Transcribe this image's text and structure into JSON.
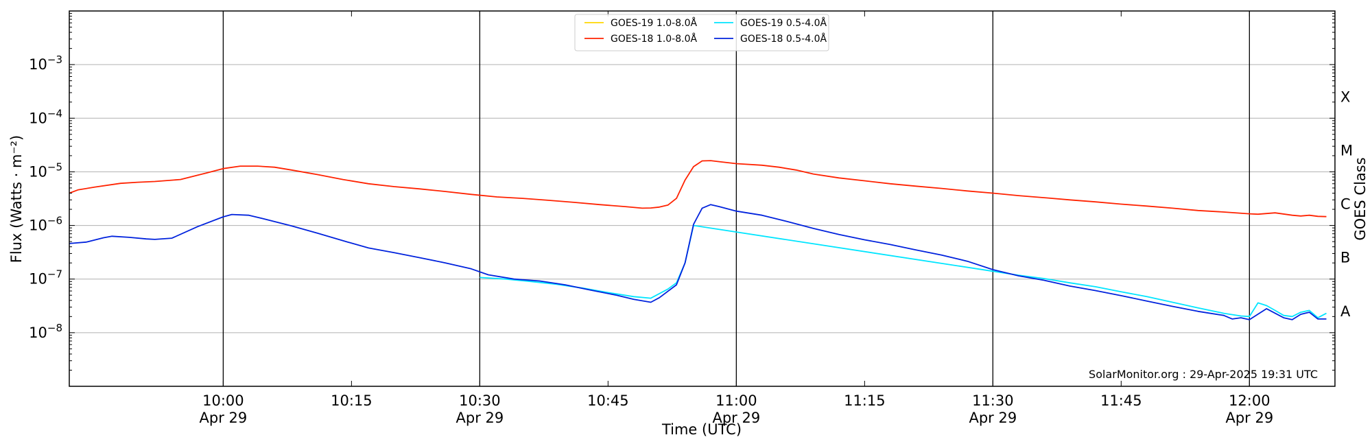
{
  "chart_data": {
    "type": "line",
    "title": "",
    "xlabel": "Time (UTC)",
    "ylabel": "Flux (Watts · m⁻²)",
    "ylabel_right": "GOES Class",
    "yscale": "log",
    "ylim": [
      1e-09,
      0.01
    ],
    "xlim": [
      "2025-04-29T09:42",
      "2025-04-29T12:10"
    ],
    "x_ticks": [
      {
        "time": "10:00",
        "date": "Apr 29"
      },
      {
        "time": "10:15",
        "date": ""
      },
      {
        "time": "10:30",
        "date": "Apr 29"
      },
      {
        "time": "10:45",
        "date": ""
      },
      {
        "time": "11:00",
        "date": "Apr 29"
      },
      {
        "time": "11:15",
        "date": ""
      },
      {
        "time": "11:30",
        "date": "Apr 29"
      },
      {
        "time": "11:45",
        "date": ""
      },
      {
        "time": "12:00",
        "date": "Apr 29"
      }
    ],
    "y_ticks": [
      "10^-3",
      "10^-4",
      "10^-5",
      "10^-6",
      "10^-7",
      "10^-8"
    ],
    "goes_classes": [
      {
        "label": "X",
        "flux": 0.0001
      },
      {
        "label": "M",
        "flux": 1e-05
      },
      {
        "label": "C",
        "flux": 1e-06
      },
      {
        "label": "B",
        "flux": 1e-07
      },
      {
        "label": "A",
        "flux": 1e-08
      }
    ],
    "grid": "horizontal",
    "legend_position": "top-center",
    "annotation": "SolarMonitor.org : 29-Apr-2025 19:31 UTC",
    "series": [
      {
        "name": "GOES-19 1.0-8.0Å",
        "color": "#ffd700",
        "points": []
      },
      {
        "name": "GOES-18 1.0-8.0Å",
        "color": "#ff2200",
        "points": [
          [
            "09:42",
            4e-06
          ],
          [
            "09:43",
            4.6e-06
          ],
          [
            "09:45",
            5.2e-06
          ],
          [
            "09:48",
            6.1e-06
          ],
          [
            "09:50",
            6.4e-06
          ],
          [
            "09:52",
            6.6e-06
          ],
          [
            "09:55",
            7.2e-06
          ],
          [
            "09:58",
            9.5e-06
          ],
          [
            "10:00",
            1.15e-05
          ],
          [
            "10:02",
            1.28e-05
          ],
          [
            "10:04",
            1.28e-05
          ],
          [
            "10:06",
            1.22e-05
          ],
          [
            "10:08",
            1.08e-05
          ],
          [
            "10:11",
            8.9e-06
          ],
          [
            "10:14",
            7.2e-06
          ],
          [
            "10:17",
            6e-06
          ],
          [
            "10:20",
            5.3e-06
          ],
          [
            "10:23",
            4.8e-06
          ],
          [
            "10:26",
            4.3e-06
          ],
          [
            "10:29",
            3.8e-06
          ],
          [
            "10:32",
            3.4e-06
          ],
          [
            "10:35",
            3.2e-06
          ],
          [
            "10:38",
            2.95e-06
          ],
          [
            "10:41",
            2.7e-06
          ],
          [
            "10:44",
            2.45e-06
          ],
          [
            "10:47",
            2.25e-06
          ],
          [
            "10:49",
            2.1e-06
          ],
          [
            "10:50",
            2.12e-06
          ],
          [
            "10:51",
            2.2e-06
          ],
          [
            "10:52",
            2.4e-06
          ],
          [
            "10:53",
            3.2e-06
          ],
          [
            "10:54",
            7e-06
          ],
          [
            "10:55",
            1.25e-05
          ],
          [
            "10:56",
            1.6e-05
          ],
          [
            "10:57",
            1.62e-05
          ],
          [
            "10:58",
            1.55e-05
          ],
          [
            "11:00",
            1.42e-05
          ],
          [
            "11:03",
            1.33e-05
          ],
          [
            "11:05",
            1.22e-05
          ],
          [
            "11:07",
            1.08e-05
          ],
          [
            "11:09",
            9.1e-06
          ],
          [
            "11:12",
            7.7e-06
          ],
          [
            "11:15",
            6.8e-06
          ],
          [
            "11:18",
            6e-06
          ],
          [
            "11:21",
            5.4e-06
          ],
          [
            "11:24",
            4.9e-06
          ],
          [
            "11:27",
            4.4e-06
          ],
          [
            "11:30",
            4e-06
          ],
          [
            "11:33",
            3.6e-06
          ],
          [
            "11:36",
            3.3e-06
          ],
          [
            "11:39",
            3e-06
          ],
          [
            "11:42",
            2.75e-06
          ],
          [
            "11:45",
            2.5e-06
          ],
          [
            "11:48",
            2.3e-06
          ],
          [
            "11:51",
            2.1e-06
          ],
          [
            "11:54",
            1.9e-06
          ],
          [
            "11:57",
            1.78e-06
          ],
          [
            "12:00",
            1.65e-06
          ],
          [
            "12:01",
            1.62e-06
          ],
          [
            "12:03",
            1.72e-06
          ],
          [
            "12:05",
            1.55e-06
          ],
          [
            "12:06",
            1.5e-06
          ],
          [
            "12:07",
            1.55e-06
          ],
          [
            "12:08",
            1.48e-06
          ],
          [
            "12:09",
            1.46e-06
          ]
        ]
      },
      {
        "name": "GOES-19 0.5-4.0Å",
        "color": "#00e5ff",
        "points": [
          [
            "10:30",
            1.07e-07
          ],
          [
            "10:33",
            1e-07
          ],
          [
            "10:36",
            9e-08
          ],
          [
            "10:39",
            8e-08
          ],
          [
            "10:42",
            6.8e-08
          ],
          [
            "10:45",
            5.6e-08
          ],
          [
            "10:48",
            4.7e-08
          ],
          [
            "10:50",
            4.4e-08
          ],
          [
            "10:52",
            6.5e-08
          ],
          [
            "10:53",
            8.5e-08
          ],
          [
            "10:54",
            2e-07
          ],
          [
            "10:55",
            1e-06
          ],
          [
            "11:30",
            1.4e-07
          ],
          [
            "11:33",
            1.18e-07
          ],
          [
            "11:36",
            1.02e-07
          ],
          [
            "11:39",
            8.5e-08
          ],
          [
            "11:42",
            7.2e-08
          ],
          [
            "11:45",
            5.8e-08
          ],
          [
            "11:48",
            4.7e-08
          ],
          [
            "11:51",
            3.7e-08
          ],
          [
            "11:54",
            2.9e-08
          ],
          [
            "11:57",
            2.3e-08
          ],
          [
            "11:59",
            2.05e-08
          ],
          [
            "12:00",
            2e-08
          ],
          [
            "12:01",
            3.6e-08
          ],
          [
            "12:02",
            3.2e-08
          ],
          [
            "12:03",
            2.6e-08
          ],
          [
            "12:04",
            2.1e-08
          ],
          [
            "12:05",
            2e-08
          ],
          [
            "12:06",
            2.4e-08
          ],
          [
            "12:07",
            2.6e-08
          ],
          [
            "12:08",
            1.9e-08
          ],
          [
            "12:09",
            2.3e-08
          ]
        ]
      },
      {
        "name": "GOES-18 0.5-4.0Å",
        "color": "#0022dd",
        "points": [
          [
            "09:42",
            4.6e-07
          ],
          [
            "09:44",
            4.9e-07
          ],
          [
            "09:46",
            5.9e-07
          ],
          [
            "09:47",
            6.3e-07
          ],
          [
            "09:49",
            6e-07
          ],
          [
            "09:51",
            5.6e-07
          ],
          [
            "09:52",
            5.5e-07
          ],
          [
            "09:54",
            5.8e-07
          ],
          [
            "09:57",
            9.5e-07
          ],
          [
            "10:00",
            1.45e-06
          ],
          [
            "10:01",
            1.6e-06
          ],
          [
            "10:03",
            1.55e-06
          ],
          [
            "10:05",
            1.3e-06
          ],
          [
            "10:08",
            9.8e-07
          ],
          [
            "10:11",
            7.2e-07
          ],
          [
            "10:14",
            5.2e-07
          ],
          [
            "10:17",
            3.8e-07
          ],
          [
            "10:20",
            3.1e-07
          ],
          [
            "10:23",
            2.5e-07
          ],
          [
            "10:26",
            2e-07
          ],
          [
            "10:29",
            1.55e-07
          ],
          [
            "10:31",
            1.2e-07
          ],
          [
            "10:34",
            1e-07
          ],
          [
            "10:37",
            9.2e-08
          ],
          [
            "10:40",
            7.8e-08
          ],
          [
            "10:43",
            6.2e-08
          ],
          [
            "10:46",
            5e-08
          ],
          [
            "10:48",
            4.2e-08
          ],
          [
            "10:50",
            3.7e-08
          ],
          [
            "10:51",
            4.5e-08
          ],
          [
            "10:53",
            7.8e-08
          ],
          [
            "10:54",
            2e-07
          ],
          [
            "10:55",
            1.05e-06
          ],
          [
            "10:56",
            2.1e-06
          ],
          [
            "10:57",
            2.45e-06
          ],
          [
            "10:58",
            2.25e-06
          ],
          [
            "11:00",
            1.85e-06
          ],
          [
            "11:03",
            1.55e-06
          ],
          [
            "11:06",
            1.18e-06
          ],
          [
            "11:09",
            8.8e-07
          ],
          [
            "11:12",
            6.8e-07
          ],
          [
            "11:15",
            5.4e-07
          ],
          [
            "11:18",
            4.4e-07
          ],
          [
            "11:21",
            3.5e-07
          ],
          [
            "11:24",
            2.8e-07
          ],
          [
            "11:27",
            2.15e-07
          ],
          [
            "11:30",
            1.5e-07
          ],
          [
            "11:33",
            1.15e-07
          ],
          [
            "11:36",
            9.5e-08
          ],
          [
            "11:39",
            7.4e-08
          ],
          [
            "11:42",
            6.1e-08
          ],
          [
            "11:45",
            4.9e-08
          ],
          [
            "11:48",
            3.9e-08
          ],
          [
            "11:51",
            3.1e-08
          ],
          [
            "11:54",
            2.5e-08
          ],
          [
            "11:57",
            2.1e-08
          ],
          [
            "11:58",
            1.8e-08
          ],
          [
            "11:59",
            1.9e-08
          ],
          [
            "12:00",
            1.75e-08
          ],
          [
            "12:02",
            2.8e-08
          ],
          [
            "12:04",
            1.9e-08
          ],
          [
            "12:05",
            1.75e-08
          ],
          [
            "12:06",
            2.2e-08
          ],
          [
            "12:07",
            2.4e-08
          ],
          [
            "12:08",
            1.8e-08
          ],
          [
            "12:09",
            1.8e-08
          ]
        ]
      }
    ]
  }
}
